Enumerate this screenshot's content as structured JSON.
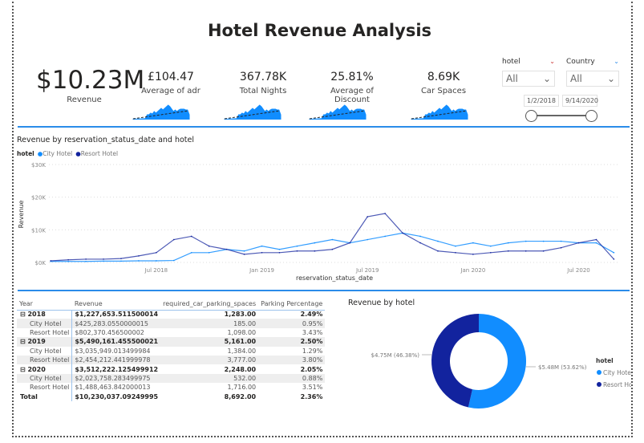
{
  "title": "Hotel Revenue Analysis",
  "kpis": {
    "revenue": {
      "value": "$10.23M",
      "label": "Revenue"
    },
    "cards": [
      {
        "value": "£104.47",
        "label": "Average of adr"
      },
      {
        "value": "367.78K",
        "label": "Total Nights"
      },
      {
        "value": "25.81%",
        "label": "Average of Discount"
      },
      {
        "value": "8.69K",
        "label": "Car Spaces"
      }
    ]
  },
  "slicers": {
    "hotel": {
      "label": "hotel",
      "value": "All"
    },
    "country": {
      "label": "Country",
      "value": "All"
    },
    "date": {
      "start": "1/2/2018",
      "end": "9/14/2020"
    }
  },
  "colors": {
    "city": "#118dff",
    "resort": "#12239e",
    "accent": "#2b8ce9"
  },
  "chart_data": [
    {
      "type": "line",
      "title": "Revenue by reservation_status_date and hotel",
      "legend_title": "hotel",
      "legend_position": "top-left",
      "xlabel": "reservation_status_date",
      "ylabel": "Revenue",
      "ylim": [
        0,
        30000
      ],
      "yticks": [
        "$0K",
        "$10K",
        "$20K",
        "$30K"
      ],
      "xticks": [
        "Jul 2018",
        "Jan 2019",
        "Jul 2019",
        "Jan 2020",
        "Jul 2020"
      ],
      "grid": true,
      "x": [
        "2018-01",
        "2018-02",
        "2018-03",
        "2018-04",
        "2018-05",
        "2018-06",
        "2018-07",
        "2018-08",
        "2018-09",
        "2018-10",
        "2018-11",
        "2018-12",
        "2019-01",
        "2019-02",
        "2019-03",
        "2019-04",
        "2019-05",
        "2019-06",
        "2019-07",
        "2019-08",
        "2019-09",
        "2019-10",
        "2019-11",
        "2019-12",
        "2020-01",
        "2020-02",
        "2020-03",
        "2020-04",
        "2020-05",
        "2020-06",
        "2020-07",
        "2020-08",
        "2020-09"
      ],
      "series": [
        {
          "name": "City Hotel",
          "values": [
            300,
            300,
            300,
            400,
            400,
            500,
            500,
            600,
            3000,
            3000,
            4000,
            3500,
            5000,
            4000,
            5000,
            6000,
            7000,
            6000,
            7000,
            8000,
            9000,
            8000,
            6500,
            5000,
            6000,
            5000,
            6000,
            6500,
            6500,
            6500,
            6000,
            6000,
            3000
          ]
        },
        {
          "name": "Resort Hotel",
          "values": [
            500,
            800,
            1000,
            1000,
            1200,
            2000,
            3000,
            7000,
            8000,
            5000,
            4000,
            2500,
            3000,
            3000,
            3500,
            3500,
            4000,
            6000,
            14000,
            15000,
            9000,
            6000,
            3500,
            3000,
            2500,
            3000,
            3500,
            3500,
            3500,
            4500,
            6000,
            7000,
            1000
          ]
        }
      ]
    },
    {
      "type": "pie",
      "title": "Revenue by hotel",
      "legend_title": "hotel",
      "legend_position": "right",
      "categories": [
        "City Hotel",
        "Resort Hotel"
      ],
      "values": [
        5.48,
        4.75
      ],
      "percentages": [
        53.62,
        46.38
      ],
      "labels": [
        "$5.48M (53.62%)",
        "$4.75M (46.38%)"
      ]
    }
  ],
  "table": {
    "headers": [
      "Year",
      "Revenue",
      "required_car_parking_spaces",
      "Parking Percentage"
    ],
    "rows": [
      {
        "type": "year",
        "cells": [
          "2018",
          "$1,227,653.511500014",
          "1,283.00",
          "2.49%"
        ]
      },
      {
        "type": "hotel",
        "cells": [
          "City Hotel",
          "$425,283.0550000015",
          "185.00",
          "0.95%"
        ]
      },
      {
        "type": "hotel",
        "cells": [
          "Resort Hotel",
          "$802,370.456500002",
          "1,098.00",
          "3.43%"
        ]
      },
      {
        "type": "year",
        "cells": [
          "2019",
          "$5,490,161.455500021",
          "5,161.00",
          "2.50%"
        ]
      },
      {
        "type": "hotel",
        "cells": [
          "City Hotel",
          "$3,035,949.013499984",
          "1,384.00",
          "1.29%"
        ]
      },
      {
        "type": "hotel",
        "cells": [
          "Resort Hotel",
          "$2,454,212.441999978",
          "3,777.00",
          "3.80%"
        ]
      },
      {
        "type": "year",
        "cells": [
          "2020",
          "$3,512,222.125499912",
          "2,248.00",
          "2.05%"
        ]
      },
      {
        "type": "hotel",
        "cells": [
          "City Hotel",
          "$2,023,758.283499975",
          "532.00",
          "0.88%"
        ]
      },
      {
        "type": "hotel",
        "cells": [
          "Resort Hotel",
          "$1,488,463.842000013",
          "1,716.00",
          "3.51%"
        ]
      },
      {
        "type": "total",
        "cells": [
          "Total",
          "$10,230,037.09249995",
          "8,692.00",
          "2.36%"
        ]
      }
    ]
  }
}
